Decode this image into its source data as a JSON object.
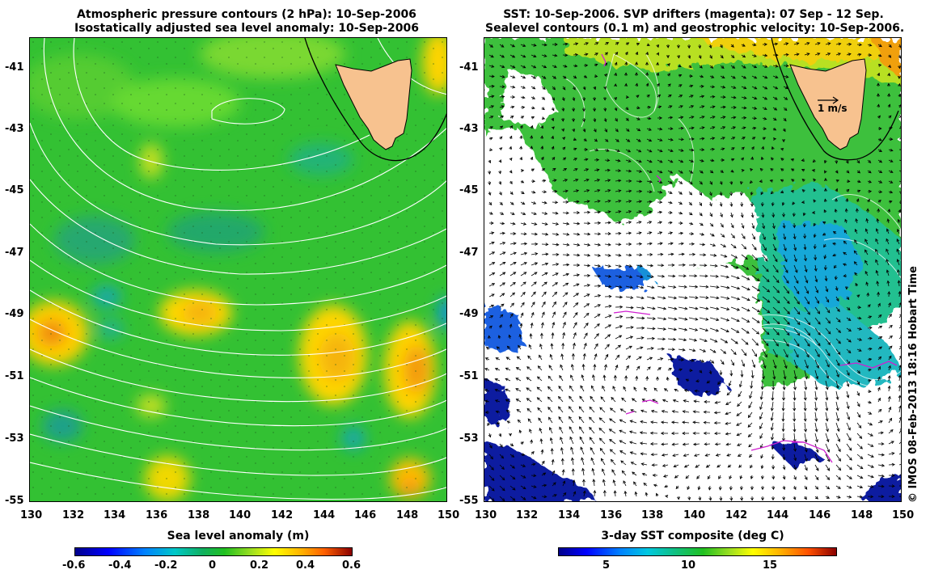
{
  "left_panel": {
    "title_line1": "Atmospheric pressure contours (2 hPa): 10-Sep-2006",
    "title_line2": "Isostatically adjusted sea level anomaly: 10-Sep-2006",
    "colorbar_label": "Sea level anomaly (m)",
    "colorbar_ticks": [
      "-0.6",
      "-0.4",
      "-0.2",
      "0",
      "0.2",
      "0.4",
      "0.6"
    ]
  },
  "right_panel": {
    "title_line1": "SST: 10-Sep-2006. SVP drifters (magenta): 07 Sep - 12 Sep.",
    "title_line2": "Sealevel contours (0.1 m) and geostrophic velocity: 10-Sep-2006.",
    "colorbar_label": "3-day SST composite (deg C)",
    "colorbar_ticks": [
      "5",
      "10",
      "15"
    ],
    "scale_arrow_label": "1 m/s"
  },
  "axes": {
    "lat_ticks": [
      "-41",
      "-43",
      "-45",
      "-47",
      "-49",
      "-51",
      "-53",
      "-55"
    ],
    "lon_ticks": [
      "130",
      "132",
      "134",
      "136",
      "138",
      "140",
      "142",
      "144",
      "146",
      "148",
      "150"
    ]
  },
  "credit": "© IMOS 08-Feb-2013 18:16 Hobart Time",
  "colors": {
    "ocean_green": "#2fc02f",
    "land": "#f7c28f",
    "anomaly_high": "#ffa500",
    "drifter": "#d020d0"
  }
}
